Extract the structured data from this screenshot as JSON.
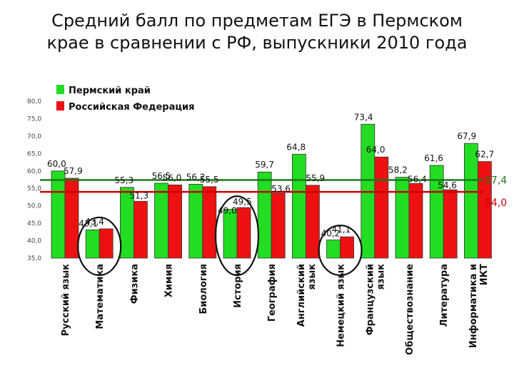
{
  "title_line1": "Средний балл по предметам ЕГЭ в Пермском",
  "title_line2": "крае в сравнении с РФ, выпускники 2010 года",
  "colors": {
    "perm": "#22dd22",
    "rf": "#ee1111",
    "perm_line": "#1a7a1a",
    "rf_line": "#cc0000",
    "circle": "#111111"
  },
  "chart_data": {
    "type": "bar",
    "ylim": [
      35,
      80
    ],
    "yticks": [
      "35,0",
      "40,0",
      "45,0",
      "50,0",
      "55,0",
      "60,0",
      "65,0",
      "70,0",
      "75,0",
      "80,0"
    ],
    "categories": [
      [
        "Русский язык"
      ],
      [
        "Математика"
      ],
      [
        "Физика"
      ],
      [
        "Химия"
      ],
      [
        "Биология"
      ],
      [
        "История"
      ],
      [
        "География"
      ],
      [
        "Английский",
        "язык"
      ],
      [
        "Немецкий язык"
      ],
      [
        "Французский",
        "язык"
      ],
      [
        "Обществознание"
      ],
      [
        "Литература"
      ],
      [
        "Информатика и",
        "ИКТ"
      ]
    ],
    "series": [
      {
        "name": "Пермский край",
        "values": [
          60.0,
          43.1,
          55.3,
          56.5,
          56.2,
          49.0,
          59.7,
          64.8,
          40.2,
          73.4,
          58.2,
          61.6,
          67.9
        ],
        "labels": [
          "60,0",
          "43,1",
          "55,3",
          "56,5",
          "56,2",
          "49,0",
          "59,7",
          "64,8",
          "40,2",
          "73,4",
          "58,2",
          "61,6",
          "67,9"
        ]
      },
      {
        "name": "Российская Федерация",
        "values": [
          57.9,
          43.4,
          51.3,
          56.0,
          55.5,
          49.5,
          53.6,
          55.9,
          41.1,
          64.0,
          56.4,
          54.6,
          62.7
        ],
        "labels": [
          "57,9",
          "43,4",
          "51,3",
          "56,0",
          "55,5",
          "49,5",
          "53,6",
          "55,9",
          "41,1",
          "64,0",
          "56,4",
          "54,6",
          "62,7"
        ]
      }
    ],
    "reference_lines": [
      {
        "value": 57.4,
        "label": "57,4",
        "series": "Пермский край"
      },
      {
        "value": 54.0,
        "label": "54,0",
        "series": "Российская Федерация"
      }
    ],
    "highlighted_categories": [
      "Математика",
      "История",
      "Немецкий язык"
    ],
    "legend": "top-left",
    "grid": false
  }
}
